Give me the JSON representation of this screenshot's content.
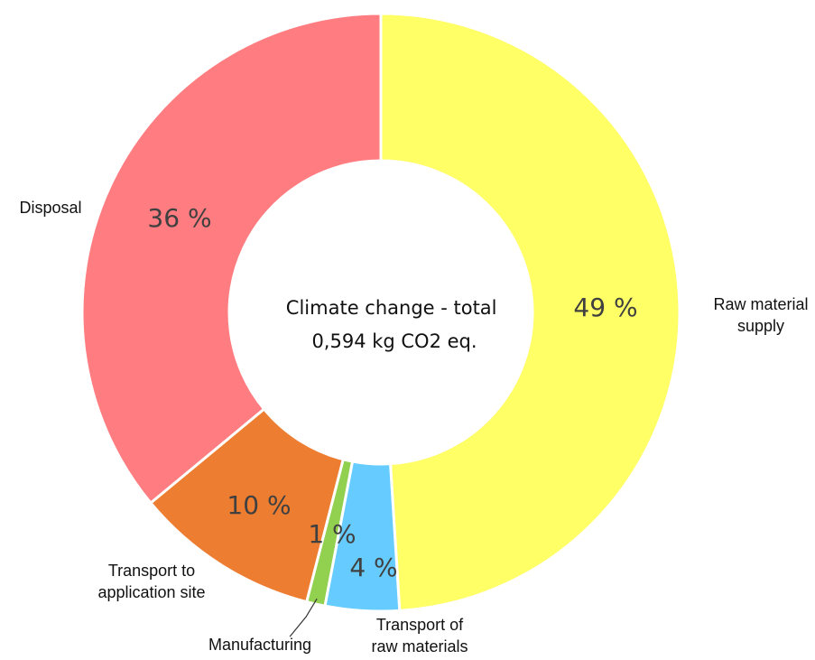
{
  "chart_data": {
    "type": "pie",
    "donut": true,
    "center_text": [
      "Climate change - total",
      "0,594 kg CO2 eq."
    ],
    "slices": [
      {
        "label": [
          "Raw material",
          "supply"
        ],
        "value": 49,
        "value_label": "49 %",
        "color": "#FFFF66"
      },
      {
        "label": [
          "Transport of",
          "raw materials"
        ],
        "value": 4,
        "value_label": "4 %",
        "color": "#66CCFF"
      },
      {
        "label": [
          "Manufacturing"
        ],
        "value": 1,
        "value_label": "1 %",
        "color": "#92D050"
      },
      {
        "label": [
          "Transport to",
          "application site"
        ],
        "value": 10,
        "value_label": "10 %",
        "color": "#ED7D31"
      },
      {
        "label": [
          "Disposal"
        ],
        "value": 36,
        "value_label": "36 %",
        "color": "#FF7C80"
      }
    ],
    "legend": "none"
  }
}
